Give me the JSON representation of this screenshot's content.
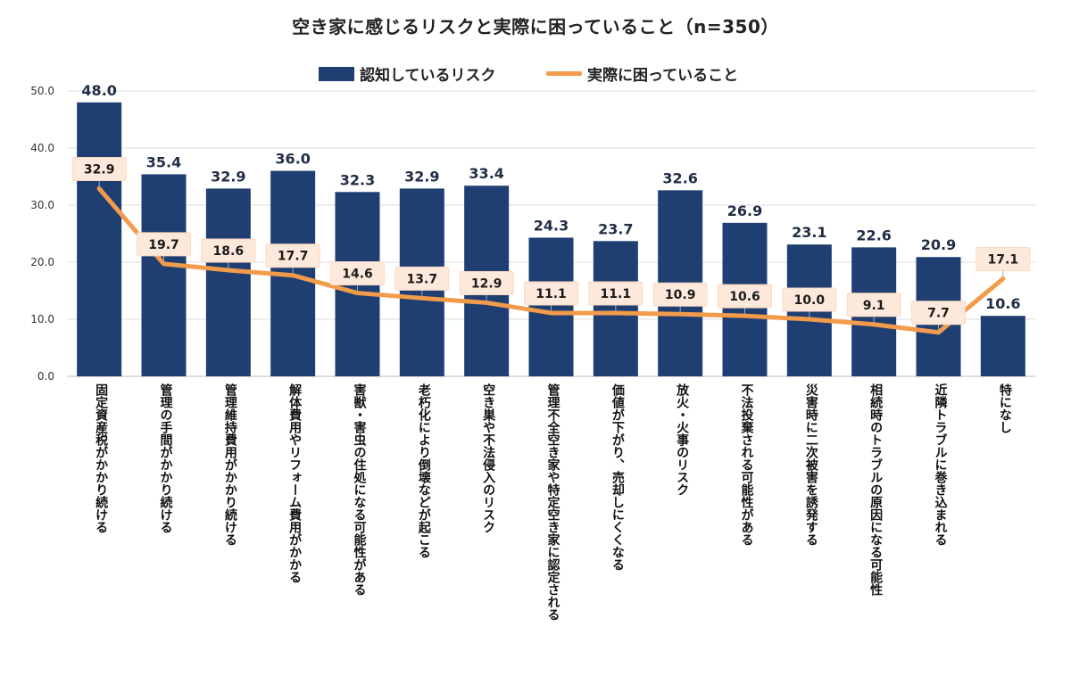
{
  "chart_data": {
    "type": "bar",
    "title": "空き家に感じるリスクと実際に困っていること（n=350）",
    "categories": [
      "固定資産税がかかり続ける",
      "管理の手間がかかり続ける",
      "管理維持費用がかかり続ける",
      "解体費用やリフォーム費用がかかる",
      "害獣・害虫の住処になる可能性がある",
      "老朽化により倒壊などが起こる",
      "空き巣や不法侵入のリスク",
      "管理不全空き家や特定空き家に認定される",
      "価値が下がり、売却しにくくなる",
      "放火・火事のリスク",
      "不法投棄される可能性がある",
      "災害時に二次被害を誘発する",
      "相続時のトラブルの原因になる可能性",
      "近隣トラブルに巻き込まれる",
      "特になし"
    ],
    "series": [
      {
        "name": "認知しているリスク",
        "kind": "bar",
        "color": "#1f3f73",
        "values": [
          48.0,
          35.4,
          32.9,
          36.0,
          32.3,
          32.9,
          33.4,
          24.3,
          23.7,
          32.6,
          26.9,
          23.1,
          22.6,
          20.9,
          10.6
        ],
        "labels": [
          "48.0",
          "35.4",
          "32.9",
          "36.0",
          "32.3",
          "32.9",
          "33.4",
          "24.3",
          "23.7",
          "32.6",
          "26.9",
          "23.1",
          "22.6",
          "20.9",
          "10.6"
        ]
      },
      {
        "name": "実際に困っていること",
        "kind": "line",
        "color": "#f29b4b",
        "values": [
          32.9,
          19.7,
          18.6,
          17.7,
          14.6,
          13.7,
          12.9,
          11.1,
          11.1,
          10.9,
          10.6,
          10.0,
          9.1,
          7.7,
          17.1
        ],
        "labels": [
          "32.9",
          "19.7",
          "18.6",
          "17.7",
          "14.6",
          "13.7",
          "12.9",
          "11.1",
          "11.1",
          "10.9",
          "10.6",
          "10.0",
          "9.1",
          "7.7",
          "17.1"
        ]
      }
    ],
    "ylim": [
      0,
      50
    ],
    "yticks": [
      "0.0",
      "10.0",
      "20.0",
      "30.0",
      "40.0",
      "50.0"
    ],
    "grid": true,
    "legend_position": "top-center"
  }
}
